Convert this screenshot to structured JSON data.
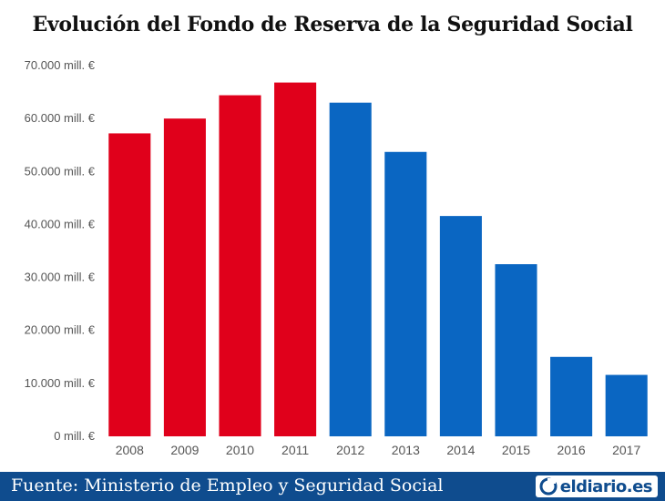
{
  "chart_data": {
    "type": "bar",
    "title": "Evolución del Fondo de Reserva de la Seguridad Social",
    "categories": [
      "2008",
      "2009",
      "2010",
      "2011",
      "2012",
      "2013",
      "2014",
      "2015",
      "2016",
      "2017"
    ],
    "values": [
      57200,
      60000,
      64400,
      66800,
      63000,
      53700,
      41600,
      32500,
      15000,
      11600
    ],
    "bar_colors": [
      "#e0001b",
      "#e0001b",
      "#e0001b",
      "#e0001b",
      "#0a66c2",
      "#0a66c2",
      "#0a66c2",
      "#0a66c2",
      "#0a66c2",
      "#0a66c2"
    ],
    "yticks": [
      0,
      10000,
      20000,
      30000,
      40000,
      50000,
      60000,
      70000
    ],
    "ytick_labels": [
      "0 mill. €",
      "10.000 mill. €",
      "20.000 mill. €",
      "30.000 mill. €",
      "40.000 mill. €",
      "50.000 mill. €",
      "60.000 mill. €",
      "70.000 mill. €"
    ],
    "ylim": [
      0,
      70000
    ],
    "grid": false,
    "xlabel": "",
    "ylabel": ""
  },
  "footer": {
    "source": "Fuente: Ministerio de Empleo y Seguridad Social",
    "logo_text": "eldiario.es",
    "background": "#0f4c8e"
  }
}
